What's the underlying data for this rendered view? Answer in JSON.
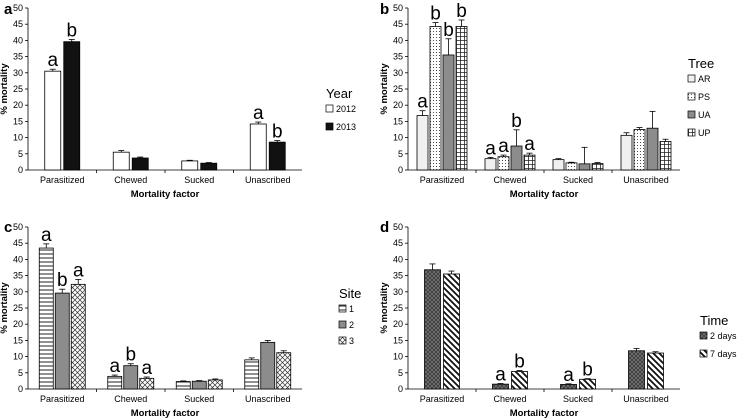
{
  "chart_data": [
    {
      "type": "bar",
      "panel_label": "a",
      "xlabel": "Mortality factor",
      "ylabel": "% mortality",
      "ylim": [
        0,
        50
      ],
      "ytick_step": 5,
      "categories": [
        "Parasitized",
        "Chewed",
        "Sucked",
        "Unascribed"
      ],
      "legend_title": "Year",
      "series": [
        {
          "name": "2012",
          "pattern": "white",
          "values": [
            30.5,
            5.5,
            2.8,
            14.2
          ],
          "errors": [
            0.6,
            0.5,
            0.2,
            0.6
          ],
          "letters": [
            "a",
            "",
            "",
            "a"
          ]
        },
        {
          "name": "2013",
          "pattern": "black",
          "values": [
            39.6,
            3.7,
            2.1,
            8.6
          ],
          "errors": [
            0.7,
            0.3,
            0.2,
            0.5
          ],
          "letters": [
            "b",
            "",
            "",
            "b"
          ]
        }
      ]
    },
    {
      "type": "bar",
      "panel_label": "b",
      "xlabel": "Mortality factor",
      "ylabel": "% mortality",
      "ylim": [
        0,
        50
      ],
      "ytick_step": 5,
      "categories": [
        "Parasitized",
        "Chewed",
        "Sucked",
        "Unascribed"
      ],
      "legend_title": "Tree",
      "series": [
        {
          "name": "AR",
          "pattern": "light",
          "values": [
            16.8,
            3.5,
            3.2,
            10.7
          ],
          "errors": [
            1.5,
            0.4,
            0.3,
            0.8
          ],
          "letters": [
            "a",
            "a",
            "",
            ""
          ]
        },
        {
          "name": "PS",
          "pattern": "dots",
          "values": [
            44.3,
            4.1,
            2.2,
            12.5
          ],
          "errors": [
            1.2,
            0.5,
            0.2,
            0.6
          ],
          "letters": [
            "b",
            "a",
            "",
            ""
          ]
        },
        {
          "name": "UA",
          "pattern": "gray",
          "values": [
            35.5,
            7.4,
            1.9,
            12.9
          ],
          "errors": [
            5.0,
            5.0,
            5.1,
            5.2
          ],
          "letters": [
            "b",
            "b",
            "",
            ""
          ]
        },
        {
          "name": "UP",
          "pattern": "grid",
          "values": [
            44.3,
            4.6,
            2.0,
            8.8
          ],
          "errors": [
            2.0,
            0.6,
            0.3,
            0.7
          ],
          "letters": [
            "b",
            "a",
            "",
            ""
          ]
        }
      ]
    },
    {
      "type": "bar",
      "panel_label": "c",
      "xlabel": "Mortality factor",
      "ylabel": "% mortality",
      "ylim": [
        0,
        50
      ],
      "ytick_step": 5,
      "categories": [
        "Parasitized",
        "Chewed",
        "Sucked",
        "Unascribed"
      ],
      "legend_title": "Site",
      "series": [
        {
          "name": "1",
          "pattern": "hlines",
          "values": [
            43.5,
            3.9,
            2.3,
            9.0
          ],
          "errors": [
            1.3,
            0.4,
            0.2,
            0.6
          ],
          "letters": [
            "a",
            "a",
            "",
            ""
          ]
        },
        {
          "name": "2",
          "pattern": "gray",
          "values": [
            29.6,
            7.2,
            2.4,
            14.4
          ],
          "errors": [
            1.2,
            0.6,
            0.2,
            0.6
          ],
          "letters": [
            "b",
            "b",
            "",
            ""
          ]
        },
        {
          "name": "3",
          "pattern": "crosshatch",
          "values": [
            32.3,
            3.3,
            2.8,
            11.2
          ],
          "errors": [
            1.5,
            0.4,
            0.3,
            0.6
          ],
          "letters": [
            "a",
            "a",
            "",
            ""
          ]
        }
      ]
    },
    {
      "type": "bar",
      "panel_label": "d",
      "xlabel": "Mortality factor",
      "ylabel": "% mortality",
      "ylim": [
        0,
        50
      ],
      "ytick_step": 5,
      "categories": [
        "Parasitized",
        "Chewed",
        "Sucked",
        "Unascribed"
      ],
      "legend_title": "Time",
      "series": [
        {
          "name": "2 days",
          "pattern": "diamond",
          "values": [
            36.8,
            1.5,
            1.4,
            11.8
          ],
          "errors": [
            1.8,
            0.2,
            0.2,
            0.7
          ],
          "letters": [
            "",
            "a",
            "a",
            ""
          ]
        },
        {
          "name": "7 days",
          "pattern": "diag",
          "values": [
            35.5,
            5.4,
            3.0,
            11.1
          ],
          "errors": [
            0.9,
            0.3,
            0.2,
            0.4
          ],
          "letters": [
            "",
            "b",
            "b",
            ""
          ]
        }
      ]
    }
  ]
}
